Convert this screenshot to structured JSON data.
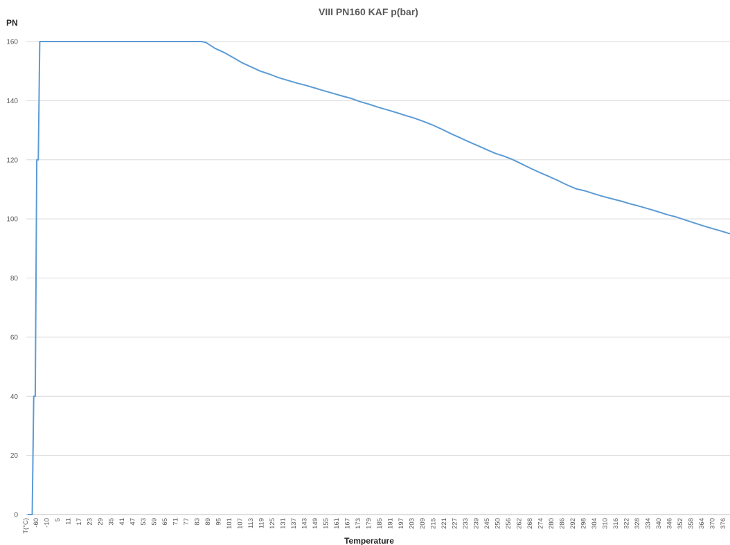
{
  "chart_data": {
    "type": "line",
    "title": "VIII PN160 KAF p(bar)",
    "xlabel": "Temperature",
    "ylabel": "PN",
    "x_header_label": "T(°C)",
    "ylim": [
      0,
      160
    ],
    "yticks": [
      0,
      20,
      40,
      60,
      80,
      100,
      120,
      140,
      160
    ],
    "grid": true,
    "legend": "none",
    "color": "#5b9bd5",
    "categories": [
      "-60",
      "-10",
      "5",
      "11",
      "17",
      "23",
      "29",
      "35",
      "41",
      "47",
      "53",
      "59",
      "65",
      "71",
      "77",
      "83",
      "89",
      "95",
      "101",
      "107",
      "113",
      "119",
      "125",
      "131",
      "137",
      "143",
      "149",
      "155",
      "161",
      "167",
      "173",
      "179",
      "185",
      "191",
      "197",
      "203",
      "209",
      "215",
      "221",
      "227",
      "233",
      "239",
      "245",
      "250",
      "256",
      "262",
      "268",
      "274",
      "280",
      "286",
      "292",
      "298",
      "304",
      "310",
      "316",
      "322",
      "328",
      "334",
      "340",
      "346",
      "352",
      "358",
      "364",
      "370",
      "376",
      "382",
      "388",
      "394",
      "400"
    ],
    "x": [
      -65,
      -62,
      -61,
      -60,
      -59,
      -58,
      -57,
      -10,
      47,
      50,
      53,
      59,
      65,
      71,
      77,
      83,
      89,
      95,
      101,
      107,
      113,
      119,
      125,
      131,
      137,
      143,
      149,
      155,
      161,
      167,
      173,
      179,
      185,
      191,
      197,
      203,
      209,
      215,
      221,
      227,
      233,
      239,
      245,
      250,
      256,
      262,
      268,
      274,
      280,
      286,
      292,
      298,
      304,
      310,
      316,
      322,
      328,
      334,
      340,
      346,
      352,
      358,
      364,
      370,
      376,
      382,
      388,
      394,
      400
    ],
    "series": [
      {
        "values": [
          0,
          0,
          40,
          40,
          120,
          120,
          160,
          160,
          160,
          160,
          159.7,
          157.7,
          156.3,
          154.6,
          152.8,
          151.4,
          150,
          149.0,
          147.8,
          146.9,
          146.0,
          145.2,
          144.3,
          143.4,
          142.5,
          141.6,
          140.8,
          139.7,
          138.8,
          137.8,
          136.9,
          136.0,
          135.0,
          134.1,
          133.0,
          131.8,
          130.4,
          128.9,
          127.5,
          126.1,
          124.8,
          123.4,
          122.1,
          121.3,
          120.1,
          118.6,
          117.1,
          115.7,
          114.4,
          113.0,
          111.5,
          110.2,
          109.5,
          108.5,
          107.6,
          106.8,
          106.0,
          105.1,
          104.3,
          103.4,
          102.5,
          101.5,
          100.7,
          99.7,
          98.7,
          97.7,
          96.8,
          95.9,
          95.0
        ]
      }
    ]
  }
}
